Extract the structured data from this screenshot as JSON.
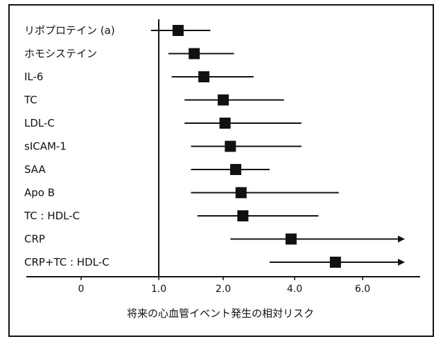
{
  "chart_data": {
    "type": "forest",
    "title": "",
    "xlabel": "将来の心血管イベント発生の相対リスク",
    "ylabel": "",
    "xlim": [
      0,
      6.5
    ],
    "ticks": [
      {
        "value": 0,
        "label": "0"
      },
      {
        "value": 1.0,
        "label": "1.0"
      },
      {
        "value": 2.0,
        "label": "2.0"
      },
      {
        "value": 4.0,
        "label": "4.0"
      },
      {
        "value": 6.0,
        "label": "6.0"
      }
    ],
    "reference_line": 1.0,
    "rows": [
      {
        "label": "リポプロテイン (a)",
        "estimate": 1.3,
        "low": 0.9,
        "high": 1.8,
        "arrow_high": false
      },
      {
        "label": "ホモシステイン",
        "estimate": 1.55,
        "low": 1.15,
        "high": 2.3,
        "arrow_high": false
      },
      {
        "label": "IL-6",
        "estimate": 1.7,
        "low": 1.2,
        "high": 2.85,
        "arrow_high": false
      },
      {
        "label": "TC",
        "estimate": 2.0,
        "low": 1.4,
        "high": 3.7,
        "arrow_high": false
      },
      {
        "label": "LDL-C",
        "estimate": 2.05,
        "low": 1.4,
        "high": 4.2,
        "arrow_high": false
      },
      {
        "label": "sICAM-1",
        "estimate": 2.2,
        "low": 1.5,
        "high": 4.2,
        "arrow_high": false
      },
      {
        "label": "SAA",
        "estimate": 2.35,
        "low": 1.5,
        "high": 3.3,
        "arrow_high": false
      },
      {
        "label": "Apo B",
        "estimate": 2.5,
        "low": 1.5,
        "high": 5.3,
        "arrow_high": false
      },
      {
        "label": "TC : HDL-C",
        "estimate": 2.55,
        "low": 1.6,
        "high": 4.7,
        "arrow_high": false
      },
      {
        "label": "CRP",
        "estimate": 3.9,
        "low": 2.2,
        "high": 6.0,
        "arrow_high": true
      },
      {
        "label": "CRP+TC : HDL-C",
        "estimate": 5.2,
        "low": 3.3,
        "high": 6.0,
        "arrow_high": true
      }
    ]
  }
}
